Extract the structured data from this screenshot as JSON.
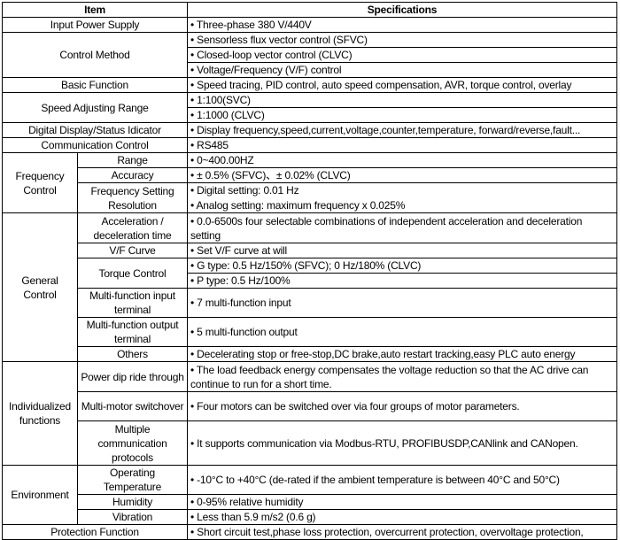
{
  "header": {
    "item": "Item",
    "specifications": "Specifications"
  },
  "rows": {
    "input_power": {
      "item": "Input Power Supply",
      "spec": [
        "• Three-phase 380 V/440V"
      ]
    },
    "control_method": {
      "item": "Control Method",
      "spec": [
        "• Sensorless flux vector control (SFVC)",
        "• Closed-loop vector control (CLVC)",
        "• Voltage/Frequency (V/F) control"
      ]
    },
    "basic_function": {
      "item": "Basic Function",
      "spec": [
        "• Speed tracing, PID control, auto speed compensation, AVR, torque control, overlay"
      ]
    },
    "speed_range": {
      "item": "Speed Adjusting Range",
      "spec": [
        "• 1:100(SVC)",
        "• 1:1000 (CLVC)"
      ]
    },
    "display": {
      "item": "Digital Display/Status Idicator",
      "spec": [
        "• Display frequency,speed,current,voltage,counter,temperature, forward/reverse,fault..."
      ]
    },
    "communication": {
      "item": "Communication Control",
      "spec": [
        "• RS485"
      ]
    },
    "frequency_control": {
      "group": "Frequency Control",
      "range": {
        "item": "Range",
        "spec": "• 0~400.00HZ"
      },
      "accuracy": {
        "item": "Accuracy",
        "spec": "• ± 0.5% (SFVC)、± 0.02% (CLVC)"
      },
      "resolution": {
        "item": "Frequency Setting Resolution",
        "spec": [
          "• Digital setting: 0.01 Hz",
          "• Analog setting: maximum frequency x 0.025%"
        ]
      }
    },
    "general_control": {
      "group": "General Control",
      "accel": {
        "item": "Acceleration / deceleration time",
        "spec": "• 0.0-6500s four selectable combinations of independent acceleration and deceleration setting"
      },
      "vf_curve": {
        "item": "V/F Curve",
        "spec": "• Set V/F curve at will"
      },
      "torque": {
        "item": "Torque Control",
        "spec": [
          "• G type: 0.5 Hz/150% (SFVC); 0 Hz/180% (CLVC)",
          "• P type: 0.5 Hz/100%"
        ]
      },
      "mfi": {
        "item": "Multi-function input terminal",
        "spec": "• 7 multi-function input"
      },
      "mfo": {
        "item": "Multi-function output terminal",
        "spec": "• 5 multi-function output"
      },
      "others": {
        "item": "Others",
        "spec": "• Decelerating stop or free-stop,DC brake,auto restart tracking,easy PLC auto energy"
      }
    },
    "individualized": {
      "group": "Individualized functions",
      "power_dip": {
        "item": "Power dip ride through",
        "spec": "• The load feedback energy compensates the voltage reduction so that the AC drive can continue to run for a short time."
      },
      "multi_motor": {
        "item": "Multi-motor switchover",
        "spec": "• Four motors can be switched over via four groups of motor parameters."
      },
      "multi_comm": {
        "item": "Multiple communication protocols",
        "spec": "• It supports communication via Modbus-RTU, PROFIBUSDP,CANlink and CANopen."
      }
    },
    "environment": {
      "group": "Environment",
      "temperature": {
        "item": "Operating Temperature",
        "spec": "• -10°C to +40°C (de-rated if the ambient temperature is between 40°C and 50°C)"
      },
      "humidity": {
        "item": "Humidity",
        "spec": "• 0-95% relative humidity"
      },
      "vibration": {
        "item": "Vibration",
        "spec": "• Less than 5.9 m/s2 (0.6 g)"
      }
    },
    "protection": {
      "item": "Protection Function",
      "spec": [
        "• Short circuit test,phase loss protection, overcurrent protection, overvoltage protection,"
      ]
    }
  }
}
